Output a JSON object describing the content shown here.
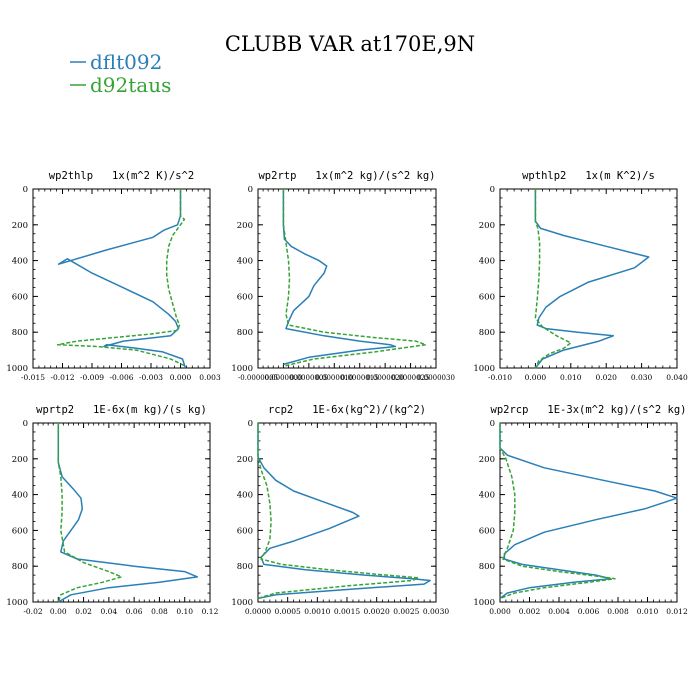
{
  "title": "CLUBB VAR at170E,9N",
  "legend": [
    {
      "name": "dflt092",
      "color": "#2a7fb8"
    },
    {
      "name": "d92taus",
      "color": "#36a336"
    }
  ],
  "colors": {
    "dflt092": "#2a7fb8",
    "d92taus": "#36a336",
    "axis": "#000000"
  },
  "chart_data": [
    {
      "type": "line",
      "title": "wp2thlp   1x(m^2 K)/s^2",
      "xlim": [
        -0.015,
        0.003
      ],
      "xticks": [
        -0.015,
        -0.012,
        -0.009,
        -0.006,
        -0.003,
        0.0,
        0.003
      ],
      "xtick_labels": [
        "-0.015",
        "-0.012",
        "-0.009",
        "-0.006",
        "-0.003",
        "0.000",
        "0.003"
      ],
      "ylim": [
        1000,
        0
      ],
      "yticks": [
        0,
        200,
        400,
        600,
        800,
        1000
      ],
      "ytick_labels": [
        "0",
        "200",
        "400",
        "600",
        "800",
        "1000"
      ],
      "series": [
        {
          "name": "dflt092",
          "color": "#2a7fb8",
          "dash": false,
          "x": [
            0.0,
            0.0,
            -0.0003,
            -0.0017,
            -0.0028,
            -0.0075,
            -0.0124,
            -0.0115,
            -0.009,
            -0.0055,
            -0.0028,
            -0.0012,
            -0.0005,
            -0.0002,
            -0.001,
            -0.0058,
            -0.0078,
            -0.0075,
            -0.0045,
            -0.0018,
            0.0002,
            0.0005
          ],
          "y": [
            0,
            150,
            200,
            230,
            270,
            340,
            420,
            390,
            470,
            560,
            630,
            700,
            740,
            780,
            820,
            850,
            880,
            870,
            890,
            910,
            950,
            1000
          ]
        },
        {
          "name": "d92taus",
          "color": "#36a336",
          "dash": true,
          "x": [
            0.0,
            0.0,
            0.0004,
            0.0,
            -0.0008,
            -0.0012,
            -0.0014,
            -0.0014,
            -0.0012,
            -0.0008,
            -0.0004,
            -0.0001,
            -0.0003,
            -0.003,
            -0.0105,
            -0.0125,
            -0.0085,
            -0.0045,
            -0.001,
            0.0005
          ],
          "y": [
            0,
            150,
            170,
            200,
            260,
            320,
            400,
            480,
            560,
            640,
            720,
            760,
            790,
            810,
            850,
            870,
            880,
            900,
            950,
            990
          ]
        }
      ]
    },
    {
      "type": "line",
      "title": "wp2rtp   1x(m^2 kg)/(s^2 kg)",
      "xlim": [
        -5e-07,
        3e-06
      ],
      "xticks": [
        -5e-07,
        0.0,
        5e-07,
        1e-06,
        1.5e-06,
        2e-06,
        2.5e-06,
        3e-06
      ],
      "xtick_labels": [
        "-0.0000005",
        "0.0000000",
        "0.0000005",
        "0.0000010",
        "0.0000015",
        "0.0000020",
        "0.0000025",
        "0.0000030"
      ],
      "ylim": [
        1000,
        0
      ],
      "yticks": [
        0,
        200,
        400,
        600,
        800,
        1000
      ],
      "ytick_labels": [
        "0",
        "200",
        "400",
        "600",
        "800",
        "1000"
      ],
      "series": [
        {
          "name": "dflt092",
          "color": "#2a7fb8",
          "dash": false,
          "x": [
            0.0,
            0.0,
            2e-08,
            1.5e-07,
            4e-07,
            7e-07,
            8.5e-07,
            8e-07,
            6e-07,
            5e-07,
            2e-07,
            1e-07,
            5e-08,
            8e-07,
            1.5e-06,
            2.1e-06,
            2.2e-06,
            1.5e-06,
            5e-07,
            0.0
          ],
          "y": [
            0,
            200,
            280,
            320,
            360,
            400,
            430,
            470,
            540,
            600,
            680,
            740,
            780,
            820,
            850,
            870,
            880,
            900,
            940,
            980
          ]
        },
        {
          "name": "d92taus",
          "color": "#36a336",
          "dash": true,
          "x": [
            0.0,
            0.0,
            5e-08,
            1e-07,
            1.2e-07,
            1e-07,
            5e-08,
            1e-07,
            8e-07,
            1.8e-06,
            2.6e-06,
            2.8e-06,
            1.8e-06,
            6e-07,
            0.0
          ],
          "y": [
            0,
            200,
            300,
            400,
            500,
            600,
            700,
            760,
            800,
            830,
            850,
            870,
            910,
            950,
            990
          ]
        }
      ]
    },
    {
      "type": "line",
      "title": "wpthlp2   1x(m K^2)/s",
      "xlim": [
        -0.01,
        0.04
      ],
      "xticks": [
        -0.01,
        0.0,
        0.01,
        0.02,
        0.03,
        0.04
      ],
      "xtick_labels": [
        "-0.010",
        "0.000",
        "0.010",
        "0.020",
        "0.030",
        "0.040"
      ],
      "ylim": [
        1000,
        0
      ],
      "yticks": [
        0,
        200,
        400,
        600,
        800,
        1000
      ],
      "ytick_labels": [
        "0",
        "200",
        "400",
        "600",
        "800",
        "1000"
      ],
      "series": [
        {
          "name": "dflt092",
          "color": "#2a7fb8",
          "dash": false,
          "x": [
            0.0,
            0.0,
            0.0015,
            0.008,
            0.02,
            0.032,
            0.028,
            0.015,
            0.007,
            0.003,
            0.001,
            0.0005,
            0.003,
            0.012,
            0.022,
            0.018,
            0.008,
            0.002,
            0.0
          ],
          "y": [
            0,
            180,
            220,
            260,
            320,
            380,
            440,
            520,
            600,
            660,
            720,
            760,
            780,
            800,
            820,
            850,
            900,
            950,
            1000
          ]
        },
        {
          "name": "d92taus",
          "color": "#36a336",
          "dash": true,
          "x": [
            0.0,
            0.0,
            0.0007,
            0.0012,
            0.0012,
            0.001,
            0.0006,
            0.0,
            0.002,
            0.006,
            0.01,
            0.008,
            0.004,
            0.001,
            0.0
          ],
          "y": [
            0,
            180,
            220,
            300,
            400,
            500,
            600,
            720,
            770,
            820,
            860,
            890,
            920,
            960,
            1000
          ]
        }
      ]
    },
    {
      "type": "line",
      "title": "wprtp2   1E-6x(m kg)/(s kg)",
      "xlim": [
        -0.02,
        0.12
      ],
      "xticks": [
        -0.02,
        0.0,
        0.02,
        0.04,
        0.06,
        0.08,
        0.1,
        0.12
      ],
      "xtick_labels": [
        "-0.02",
        "0.00",
        "0.02",
        "0.04",
        "0.06",
        "0.08",
        "0.10",
        "0.12"
      ],
      "ylim": [
        1000,
        0
      ],
      "yticks": [
        0,
        200,
        400,
        600,
        800,
        1000
      ],
      "ytick_labels": [
        "0",
        "200",
        "400",
        "600",
        "800",
        "1000"
      ],
      "series": [
        {
          "name": "dflt092",
          "color": "#2a7fb8",
          "dash": false,
          "x": [
            0.0,
            0.0,
            0.003,
            0.012,
            0.018,
            0.019,
            0.016,
            0.01,
            0.004,
            0.002,
            0.015,
            0.06,
            0.1,
            0.11,
            0.08,
            0.04,
            0.01,
            0.0
          ],
          "y": [
            0,
            220,
            300,
            370,
            420,
            480,
            540,
            600,
            660,
            720,
            760,
            800,
            830,
            860,
            890,
            920,
            960,
            1000
          ]
        },
        {
          "name": "d92taus",
          "color": "#36a336",
          "dash": true,
          "x": [
            0.0,
            0.0,
            0.002,
            0.003,
            0.003,
            0.002,
            0.005,
            0.02,
            0.04,
            0.05,
            0.035,
            0.015,
            0.002,
            0.0
          ],
          "y": [
            0,
            220,
            300,
            400,
            500,
            600,
            720,
            780,
            830,
            860,
            890,
            920,
            960,
            1000
          ]
        }
      ]
    },
    {
      "type": "line",
      "title": "rcp2   1E-6x(kg^2)/(kg^2)",
      "xlim": [
        0.0,
        0.003
      ],
      "xticks": [
        0.0,
        0.0005,
        0.001,
        0.0015,
        0.002,
        0.0025,
        0.003
      ],
      "xtick_labels": [
        "0.0000",
        "0.0005",
        "0.0010",
        "0.0015",
        "0.0020",
        "0.0025",
        "0.0030"
      ],
      "ylim": [
        1000,
        0
      ],
      "yticks": [
        0,
        200,
        400,
        600,
        800,
        1000
      ],
      "ytick_labels": [
        "0",
        "200",
        "400",
        "600",
        "800",
        "1000"
      ],
      "series": [
        {
          "name": "dflt092",
          "color": "#2a7fb8",
          "dash": false,
          "x": [
            0.0,
            0.0,
            0.0001,
            0.0003,
            0.0006,
            0.0011,
            0.0016,
            0.0017,
            0.0012,
            0.0006,
            0.0002,
            5e-05,
            0.0001,
            0.0008,
            0.0018,
            0.0026,
            0.0029,
            0.0028,
            0.0015,
            0.0003,
            0.0
          ],
          "y": [
            0,
            190,
            250,
            320,
            380,
            440,
            500,
            520,
            590,
            660,
            700,
            750,
            790,
            820,
            850,
            870,
            880,
            900,
            930,
            960,
            980
          ]
        },
        {
          "name": "d92taus",
          "color": "#36a336",
          "dash": true,
          "x": [
            0.0,
            0.0,
            5e-05,
            0.00015,
            0.0002,
            0.00022,
            0.0002,
            0.00012,
            5e-05,
            0.0004,
            0.0012,
            0.002,
            0.0027,
            0.0026,
            0.0015,
            0.0003,
            0.0
          ],
          "y": [
            0,
            190,
            260,
            350,
            450,
            550,
            650,
            720,
            760,
            790,
            820,
            845,
            865,
            880,
            910,
            950,
            980
          ]
        }
      ]
    },
    {
      "type": "line",
      "title": "wp2rcp   1E-3x(m^2 kg)/(s^2 kg)",
      "xlim": [
        0.0,
        0.012
      ],
      "xticks": [
        0.0,
        0.002,
        0.004,
        0.006,
        0.008,
        0.01,
        0.012
      ],
      "xtick_labels": [
        "0.000",
        "0.002",
        "0.004",
        "0.006",
        "0.008",
        "0.010",
        "0.012"
      ],
      "ylim": [
        1000,
        0
      ],
      "yticks": [
        0,
        200,
        400,
        600,
        800,
        1000
      ],
      "ytick_labels": [
        "0",
        "200",
        "400",
        "600",
        "800",
        "1000"
      ],
      "series": [
        {
          "name": "dflt092",
          "color": "#2a7fb8",
          "dash": false,
          "x": [
            0.0,
            0.0,
            0.0005,
            0.003,
            0.007,
            0.0105,
            0.012,
            0.0098,
            0.0065,
            0.003,
            0.001,
            0.0003,
            0.0003,
            0.0015,
            0.004,
            0.0065,
            0.0075,
            0.005,
            0.002,
            0.0005,
            0.0
          ],
          "y": [
            0,
            140,
            180,
            250,
            320,
            380,
            420,
            480,
            540,
            610,
            680,
            730,
            760,
            790,
            820,
            850,
            870,
            890,
            920,
            950,
            980
          ]
        },
        {
          "name": "d92taus",
          "color": "#36a336",
          "dash": true,
          "x": [
            0.0,
            0.0,
            0.0004,
            0.0008,
            0.001,
            0.001,
            0.0009,
            0.0005,
            0.0002,
            0.0015,
            0.004,
            0.0065,
            0.0078,
            0.006,
            0.003,
            0.001,
            0.0
          ],
          "y": [
            0,
            140,
            200,
            300,
            400,
            500,
            600,
            700,
            760,
            800,
            830,
            855,
            870,
            890,
            920,
            950,
            980
          ]
        }
      ]
    }
  ]
}
